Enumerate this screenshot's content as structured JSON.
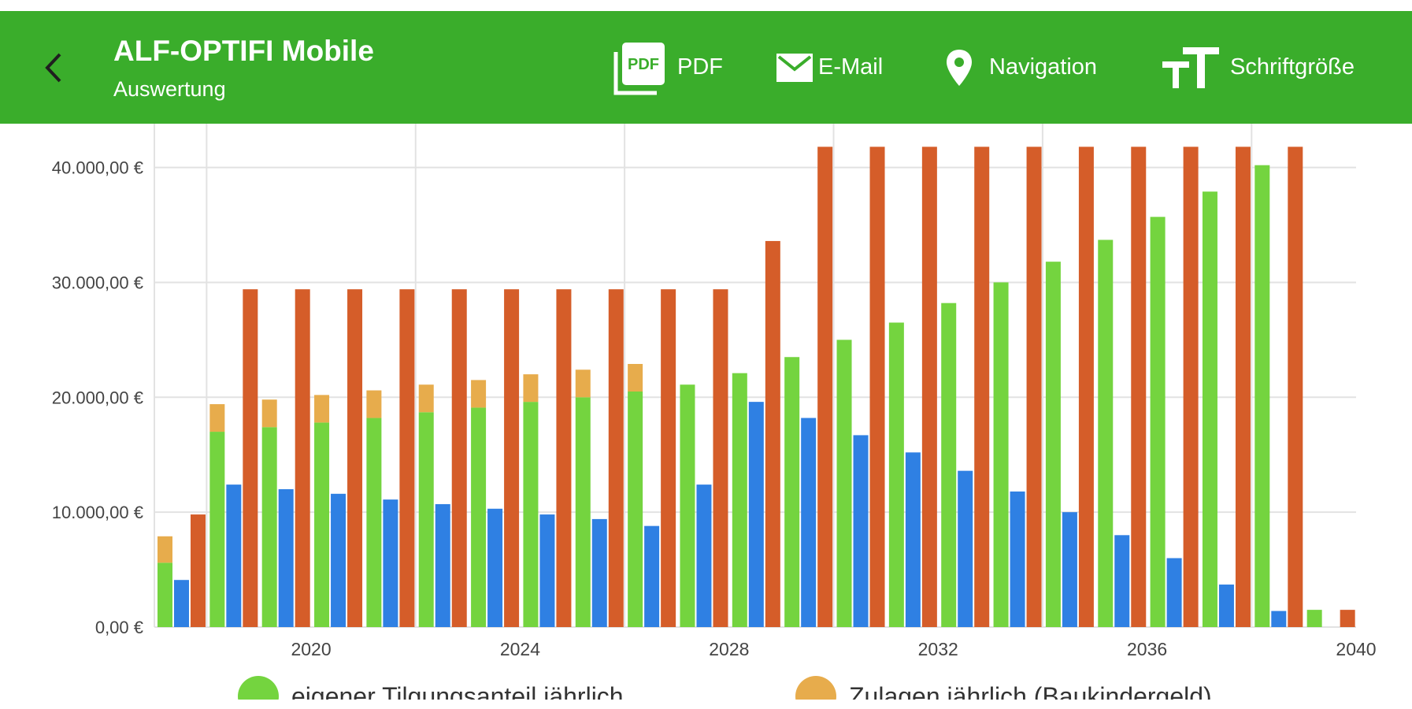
{
  "appbar": {
    "title": "ALF-OPTIFI Mobile",
    "subtitle": "Auswertung",
    "actions": [
      {
        "icon": "pdf-icon",
        "label": "PDF"
      },
      {
        "icon": "mail-icon",
        "label": "E-Mail"
      },
      {
        "icon": "location-pin-icon",
        "label": "Navigation"
      },
      {
        "icon": "font-size-icon",
        "label": "Schriftgröße"
      }
    ],
    "back_icon": "back-arrow-icon"
  },
  "colors": {
    "appbar": "#3aad2b",
    "own_repayment": "#74d43f",
    "subsidies": "#e7ac4c",
    "blue_series": "#2f80e3",
    "orange_series": "#d55d29"
  },
  "legend": [
    {
      "label": "eigener Tilgungsanteil jährlich",
      "color": "#74d43f"
    },
    {
      "label": "Zulagen jährlich  (Baukindergeld)",
      "color": "#e7ac4c"
    }
  ],
  "chart_data": {
    "type": "bar",
    "title": "",
    "xlabel": "",
    "ylabel": "",
    "ylim": [
      0,
      43400
    ],
    "xlim": [
      2017.0,
      2040.0
    ],
    "x_ticks": [
      2020,
      2024,
      2028,
      2032,
      2036,
      2040
    ],
    "y_ticks": [
      0,
      10000,
      20000,
      30000,
      40000
    ],
    "y_tick_labels": [
      "0,00 €",
      "10.000,00 €",
      "20.000,00 €",
      "30.000,00 €",
      "40.000,00 €"
    ],
    "categories": [
      2017,
      2018,
      2019,
      2020,
      2021,
      2022,
      2023,
      2024,
      2025,
      2026,
      2027,
      2028,
      2029,
      2030,
      2031,
      2032,
      2033,
      2034,
      2035,
      2036,
      2037,
      2038,
      2039
    ],
    "series": [
      {
        "name": "eigener Tilgungsanteil jährlich",
        "stack": "a",
        "color": "#74d43f",
        "values": [
          5600,
          17000,
          17400,
          17800,
          18200,
          18700,
          19100,
          19600,
          20000,
          20500,
          21100,
          22100,
          23500,
          25000,
          26500,
          28200,
          30000,
          31800,
          33700,
          35700,
          37900,
          40200,
          1500
        ]
      },
      {
        "name": "Zulagen jährlich  (Baukindergeld)",
        "stack": "a",
        "color": "#e7ac4c",
        "values": [
          2300,
          2400,
          2400,
          2400,
          2400,
          2400,
          2400,
          2400,
          2400,
          2400,
          0,
          0,
          0,
          0,
          0,
          0,
          0,
          0,
          0,
          0,
          0,
          0,
          0
        ]
      },
      {
        "name": "",
        "stack": "b",
        "color": "#2f80e3",
        "values": [
          4100,
          12400,
          12000,
          11600,
          11100,
          10700,
          10300,
          9800,
          9400,
          8800,
          12400,
          19600,
          18200,
          16700,
          15200,
          13600,
          11800,
          10000,
          8000,
          6000,
          3700,
          1400,
          0
        ]
      },
      {
        "name": "",
        "stack": "c",
        "color": "#d55d29",
        "values": [
          9800,
          29400,
          29400,
          29400,
          29400,
          29400,
          29400,
          29400,
          29400,
          29400,
          29400,
          33600,
          41800,
          41800,
          41800,
          41800,
          41800,
          41800,
          41800,
          41800,
          41800,
          41800,
          1500
        ]
      }
    ]
  }
}
